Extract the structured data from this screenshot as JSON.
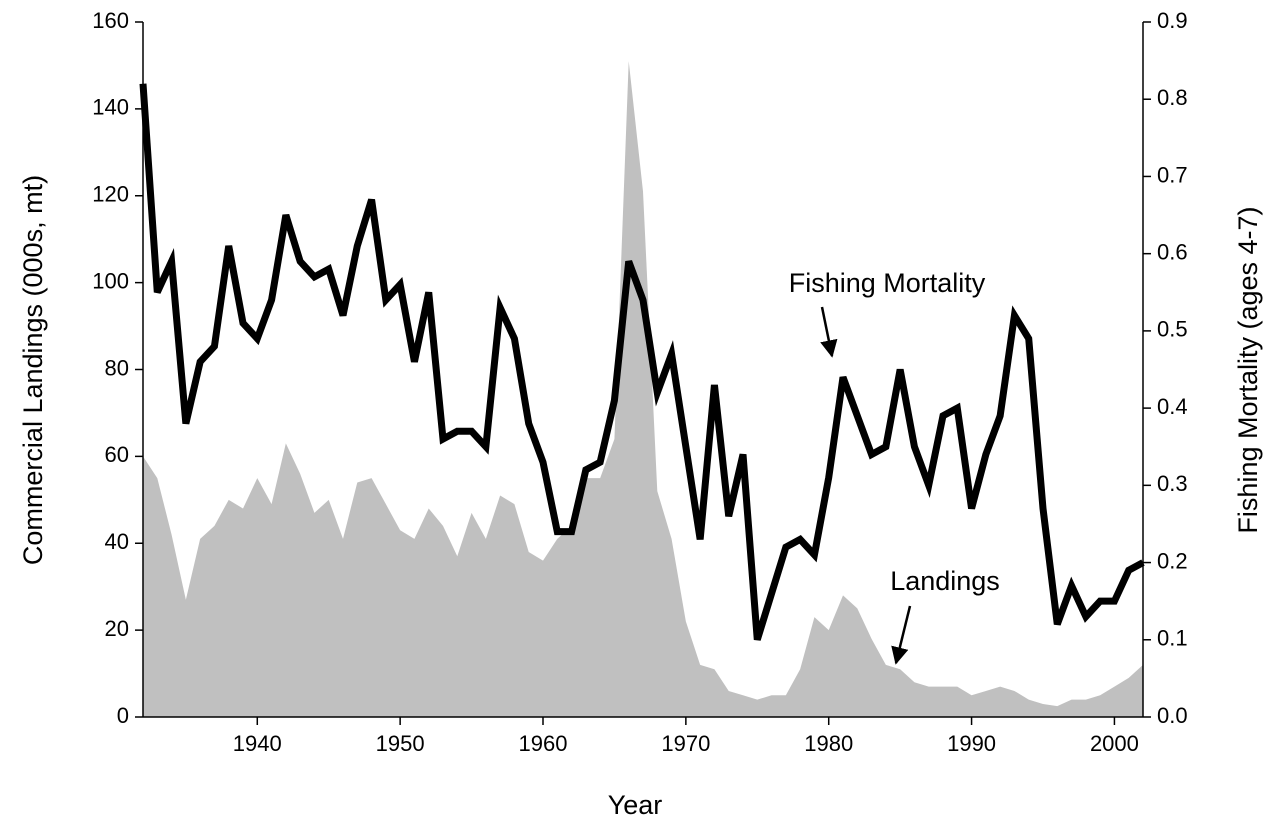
{
  "chart_data": {
    "type": "area-line",
    "x_label": "Year",
    "y_label": "Commercial Landings (000s, mt)",
    "y2_label": "Fishing Mortality (ages 4-7)",
    "annotations": [
      "Fishing Mortality",
      "Landings"
    ],
    "x": [
      1932,
      1933,
      1934,
      1935,
      1936,
      1937,
      1938,
      1939,
      1940,
      1941,
      1942,
      1943,
      1944,
      1945,
      1946,
      1947,
      1948,
      1949,
      1950,
      1951,
      1952,
      1953,
      1954,
      1955,
      1956,
      1957,
      1958,
      1959,
      1960,
      1961,
      1962,
      1963,
      1964,
      1965,
      1966,
      1967,
      1968,
      1969,
      1970,
      1971,
      1972,
      1973,
      1974,
      1975,
      1976,
      1977,
      1978,
      1979,
      1980,
      1981,
      1982,
      1983,
      1984,
      1985,
      1986,
      1987,
      1988,
      1989,
      1990,
      1991,
      1992,
      1993,
      1994,
      1995,
      1996,
      1997,
      1998,
      1999,
      2000,
      2001,
      2002
    ],
    "series": [
      {
        "name": "Landings",
        "type": "area",
        "axis": "y",
        "color": "#c0c0c0",
        "values": [
          60,
          55,
          42,
          27,
          41,
          44,
          50,
          48,
          55,
          49,
          63,
          56,
          47,
          50,
          41,
          54,
          55,
          49,
          43,
          41,
          48,
          44,
          37,
          47,
          41,
          51,
          49,
          38,
          36,
          41,
          44,
          55,
          55,
          64,
          151,
          121,
          52,
          41,
          22,
          12,
          11,
          6,
          5,
          4,
          5,
          5,
          11,
          23,
          20,
          28,
          25,
          18,
          12,
          11,
          8,
          7,
          7,
          7,
          5,
          6,
          7,
          6,
          4,
          3,
          2.5,
          4,
          4,
          5,
          7,
          9,
          12
        ]
      },
      {
        "name": "Fishing Mortality",
        "type": "line",
        "axis": "y2",
        "color": "#000000",
        "values": [
          0.82,
          0.55,
          0.59,
          0.38,
          0.46,
          0.48,
          0.61,
          0.51,
          0.49,
          0.54,
          0.65,
          0.59,
          0.57,
          0.58,
          0.52,
          0.61,
          0.67,
          0.54,
          0.56,
          0.46,
          0.55,
          0.36,
          0.37,
          0.37,
          0.35,
          0.53,
          0.49,
          0.38,
          0.33,
          0.24,
          0.24,
          0.32,
          0.33,
          0.41,
          0.59,
          0.54,
          0.42,
          0.47,
          0.35,
          0.23,
          0.43,
          0.26,
          0.34,
          0.1,
          0.16,
          0.22,
          0.23,
          0.21,
          0.31,
          0.44,
          0.39,
          0.34,
          0.35,
          0.45,
          0.35,
          0.3,
          0.39,
          0.4,
          0.27,
          0.34,
          0.39,
          0.52,
          0.49,
          0.27,
          0.12,
          0.17,
          0.13,
          0.15,
          0.15,
          0.19,
          0.2
        ]
      }
    ],
    "xlim": [
      1932,
      2002
    ],
    "xticks": [
      1940,
      1950,
      1960,
      1970,
      1980,
      1990,
      2000
    ],
    "ylim": [
      0,
      160
    ],
    "yticks": [
      0,
      20,
      40,
      60,
      80,
      100,
      120,
      140,
      160
    ],
    "y2lim": [
      0,
      0.9
    ],
    "y2ticks": [
      {
        "value": 0,
        "label": "0.0"
      },
      0.1,
      0.2,
      0.3,
      0.4,
      0.5,
      0.6,
      0.7,
      0.8,
      0.9
    ],
    "grid": false
  }
}
